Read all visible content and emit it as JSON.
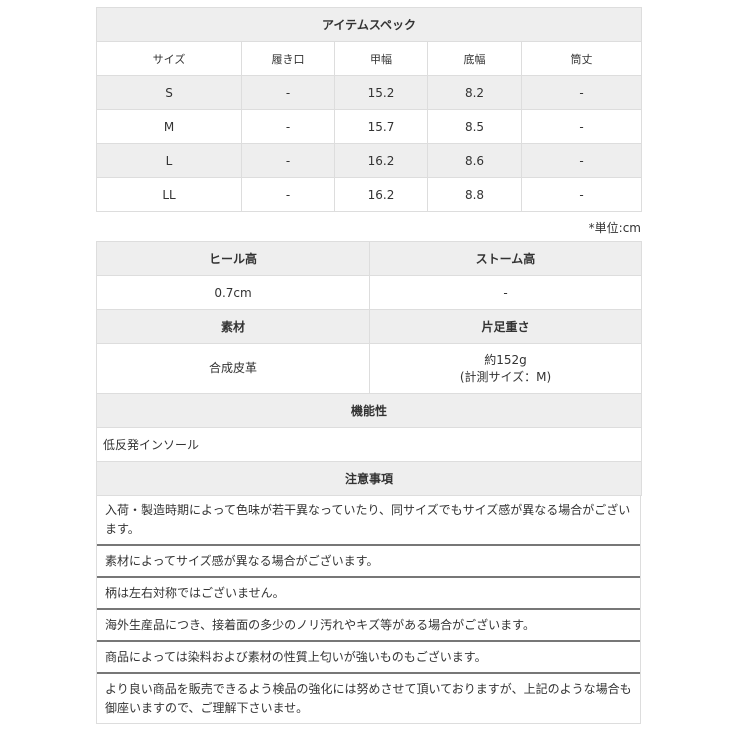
{
  "spec": {
    "title": "アイテムスペック",
    "headers": [
      "サイズ",
      "履き口",
      "甲幅",
      "底幅",
      "筒丈"
    ],
    "rows": [
      [
        "S",
        "-",
        "15.2",
        "8.2",
        "-"
      ],
      [
        "M",
        "-",
        "15.7",
        "8.5",
        "-"
      ],
      [
        "L",
        "-",
        "16.2",
        "8.6",
        "-"
      ],
      [
        "LL",
        "-",
        "16.2",
        "8.8",
        "-"
      ]
    ],
    "unit_note": "*単位:cm"
  },
  "detail": {
    "heel_label": "ヒール高",
    "heel_value": "0.7cm",
    "storm_label": "ストーム高",
    "storm_value": "-",
    "material_label": "素材",
    "material_value": "合成皮革",
    "weight_label": "片足重さ",
    "weight_value": "約152g",
    "weight_note": "(計測サイズ：M)",
    "function_label": "機能性",
    "function_value": "低反発インソール",
    "notes_label": "注意事項"
  },
  "notes": [
    "入荷・製造時期によって色味が若干異なっていたり、同サイズでもサイズ感が異なる場合がございます。",
    "素材によってサイズ感が異なる場合がございます。",
    "柄は左右対称ではございません。",
    "海外生産品につき、接着面の多少のノリ汚れやキズ等がある場合がございます。",
    "商品によっては染料および素材の性質上匂いが強いものもございます。",
    "より良い商品を販売できるよう検品の強化には努めさせて頂いておりますが、上記のような場合も御座いますので、ご理解下さいませ。"
  ]
}
